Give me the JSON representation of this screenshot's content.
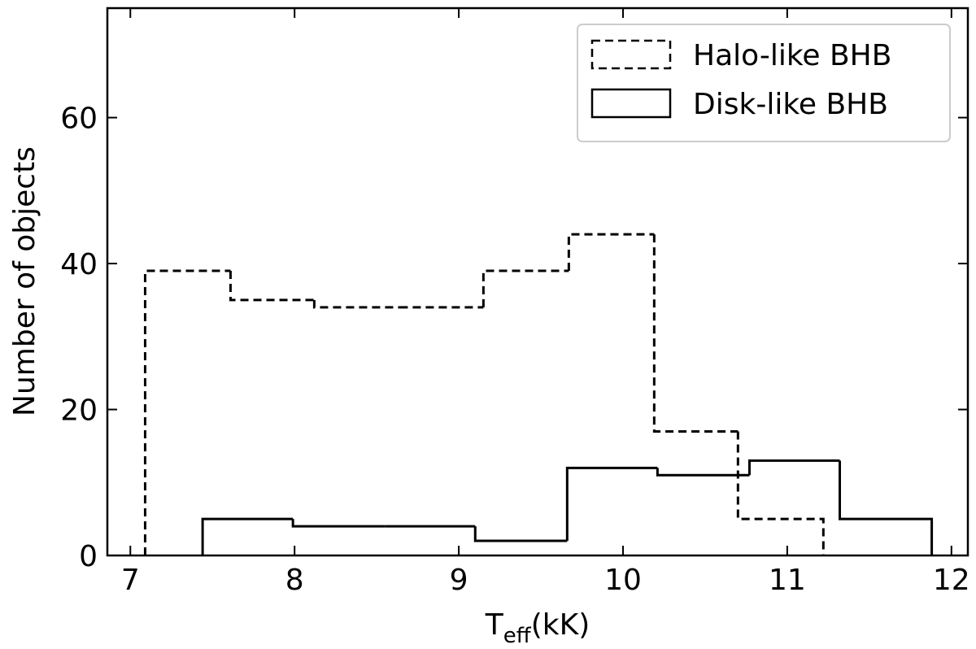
{
  "chart_data": {
    "type": "histogram",
    "xlabel": {
      "main": "T",
      "sub": "eff",
      "unit": "(kK)"
    },
    "ylabel": "Number of objects",
    "xlim": [
      6.86,
      12.1
    ],
    "xticks": [
      7,
      8,
      9,
      10,
      11,
      12
    ],
    "ylim": [
      0,
      75
    ],
    "yticks": [
      0,
      20,
      40,
      60
    ],
    "legend": "upper right",
    "series": [
      {
        "name": "Halo-like BHB",
        "color": "#000000",
        "linestyle": "dashed",
        "bins": [
          7.09,
          7.61,
          8.12,
          8.64,
          9.15,
          9.67,
          10.19,
          10.7,
          11.22
        ],
        "values": [
          39,
          35,
          34,
          34,
          39,
          44,
          17,
          5
        ]
      },
      {
        "name": "Disk-like BHB",
        "color": "#000000",
        "linestyle": "solid",
        "bins": [
          7.44,
          7.99,
          8.55,
          9.1,
          9.66,
          10.21,
          10.77,
          11.32,
          11.88
        ],
        "values": [
          5,
          4,
          4,
          2,
          12,
          11,
          13,
          5
        ]
      }
    ]
  }
}
